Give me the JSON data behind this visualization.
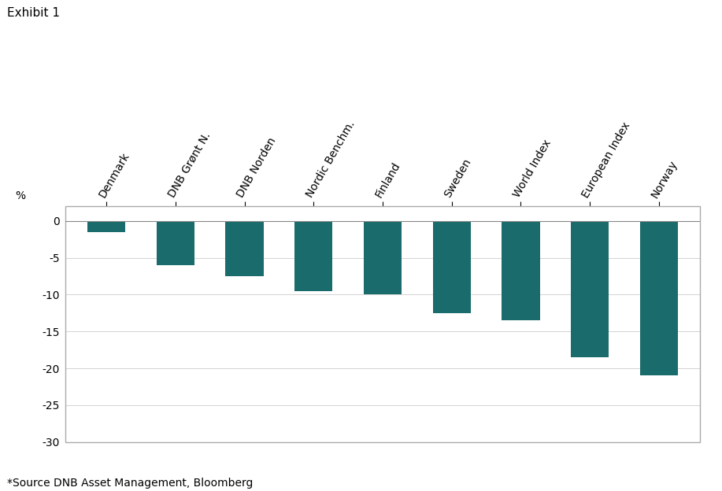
{
  "categories": [
    "Denmark",
    "DNB Grønt N.",
    "DNB Norden",
    "Nordic Benchm.",
    "Finland",
    "Sweden",
    "World Index",
    "European Index",
    "Norway"
  ],
  "values": [
    -1.5,
    -6.0,
    -7.5,
    -9.5,
    -10.0,
    -12.5,
    -13.5,
    -18.5,
    -21.0
  ],
  "bar_color": "#1a6b6b",
  "title": "Exhibit 1",
  "ylabel": "%",
  "ylim": [
    -30,
    2
  ],
  "yticks": [
    0,
    -5,
    -10,
    -15,
    -20,
    -25,
    -30
  ],
  "footnote": "*Source DNB Asset Management, Bloomberg",
  "bar_width": 0.55,
  "background_color": "#ffffff",
  "grid_color": "#cccccc",
  "title_fontsize": 11,
  "label_fontsize": 10,
  "tick_fontsize": 10,
  "footnote_fontsize": 10
}
